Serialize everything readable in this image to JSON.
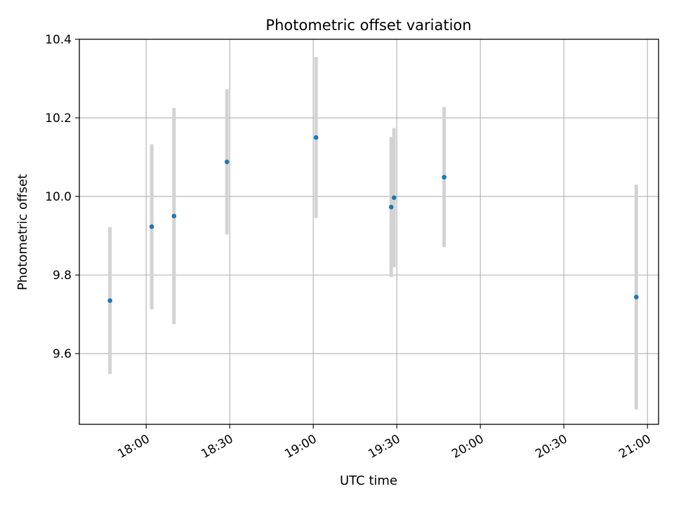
{
  "chart_data": {
    "type": "scatter",
    "title": "Photometric offset variation",
    "xlabel": "UTC time",
    "ylabel": "Photometric offset",
    "xlim": [
      "17:36",
      "21:04"
    ],
    "ylim": [
      9.42,
      10.4
    ],
    "xticks": [
      "18:00",
      "18:30",
      "19:00",
      "19:30",
      "20:00",
      "20:30",
      "21:00"
    ],
    "yticks": [
      9.6,
      9.8,
      10.0,
      10.2,
      10.4
    ],
    "grid": true,
    "errorbar_color": "#d3d3d3",
    "point_color": "#1f77b4",
    "points": [
      {
        "x": "17:47",
        "y": 9.735,
        "yerr_low": 9.548,
        "yerr_high": 9.922
      },
      {
        "x": "18:02",
        "y": 9.923,
        "yerr_low": 9.713,
        "yerr_high": 10.133
      },
      {
        "x": "18:10",
        "y": 9.95,
        "yerr_low": 9.675,
        "yerr_high": 10.225
      },
      {
        "x": "18:29",
        "y": 10.088,
        "yerr_low": 9.903,
        "yerr_high": 10.273
      },
      {
        "x": "19:01",
        "y": 10.15,
        "yerr_low": 9.945,
        "yerr_high": 10.355
      },
      {
        "x": "19:28",
        "y": 9.973,
        "yerr_low": 9.795,
        "yerr_high": 10.151
      },
      {
        "x": "19:29",
        "y": 9.997,
        "yerr_low": 9.82,
        "yerr_high": 10.174
      },
      {
        "x": "19:47",
        "y": 10.049,
        "yerr_low": 9.871,
        "yerr_high": 10.228
      },
      {
        "x": "20:56",
        "y": 9.744,
        "yerr_low": 9.458,
        "yerr_high": 10.03
      }
    ]
  }
}
